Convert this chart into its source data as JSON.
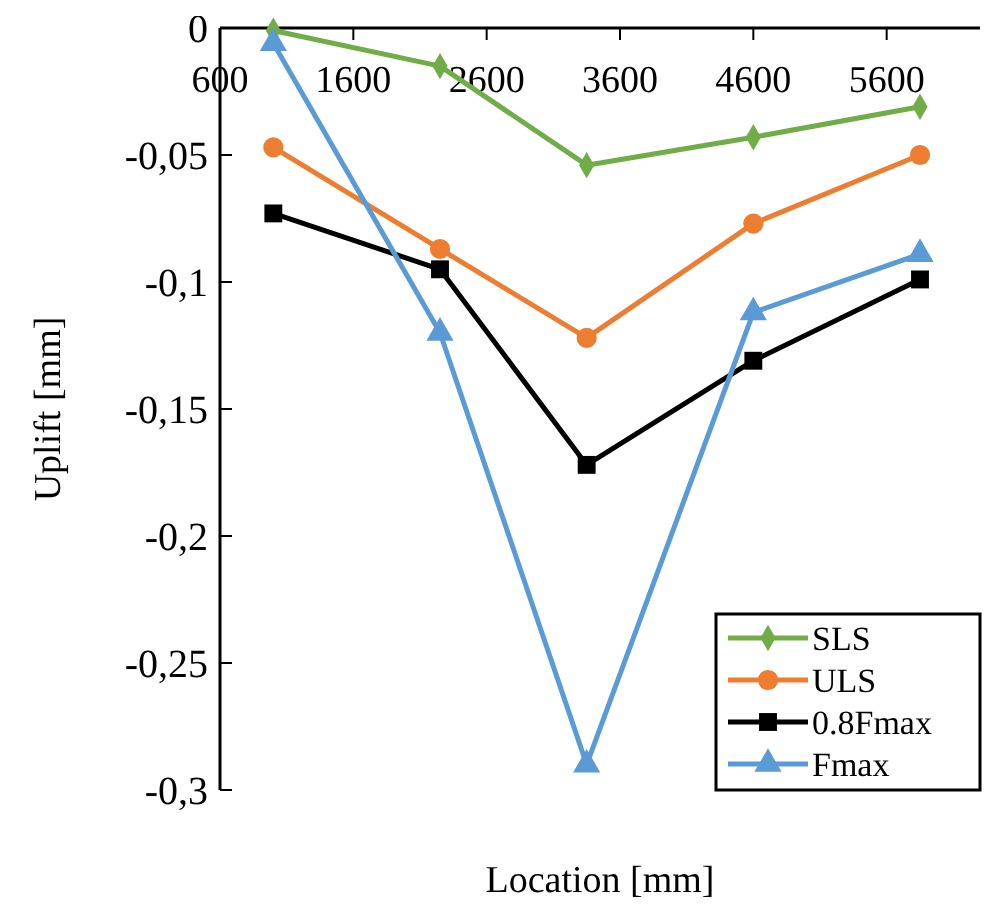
{
  "chart_data": {
    "type": "line",
    "xlabel": "Location [mm]",
    "ylabel": "Uplift [mm]",
    "x": [
      1000,
      2250,
      3350,
      4600,
      5850
    ],
    "xlim": [
      600,
      6300
    ],
    "xticks": [
      600,
      1600,
      2600,
      3600,
      4600,
      5600
    ],
    "ylim": [
      -0.3,
      0
    ],
    "yticks": [
      {
        "value": 0,
        "label": "0"
      },
      {
        "value": -0.05,
        "label": "-0,05"
      },
      {
        "value": -0.1,
        "label": "-0,1"
      },
      {
        "value": -0.15,
        "label": "-0,15"
      },
      {
        "value": -0.2,
        "label": "-0,2"
      },
      {
        "value": -0.25,
        "label": "-0,25"
      },
      {
        "value": -0.3,
        "label": "-0,3"
      }
    ],
    "grid": false,
    "legend": "bottom right",
    "series": [
      {
        "name": "SLS",
        "color": "#70ad47",
        "marker": "diamond",
        "values": [
          -0.001,
          -0.015,
          -0.054,
          -0.043,
          -0.031
        ]
      },
      {
        "name": "ULS",
        "color": "#ed7d31",
        "marker": "circle",
        "values": [
          -0.047,
          -0.087,
          -0.122,
          -0.077,
          -0.05
        ]
      },
      {
        "name": "0.8Fmax",
        "color": "#000000",
        "marker": "square",
        "values": [
          -0.073,
          -0.095,
          -0.172,
          -0.131,
          -0.099
        ]
      },
      {
        "name": "Fmax",
        "color": "#5b9bd5",
        "marker": "triangle",
        "values": [
          -0.006,
          -0.12,
          -0.29,
          -0.112,
          -0.089
        ]
      }
    ]
  }
}
